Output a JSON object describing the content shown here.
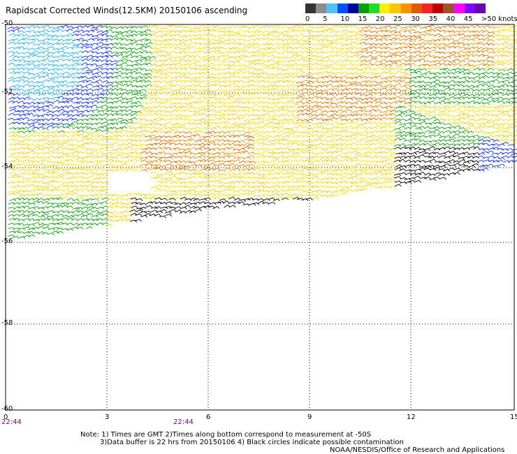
{
  "title": "Rapidscat Corrected Winds(12.5KM) 20150106 ascending",
  "legend": {
    "unit": ">50 knots",
    "labels": [
      "0",
      "5",
      "10",
      "15",
      "20",
      "25",
      "30",
      "35",
      "40",
      "45"
    ],
    "colors": [
      "#333333",
      "#8c8c8c",
      "#4fc3f7",
      "#0050ff",
      "#0000a0",
      "#00a000",
      "#22dd22",
      "#ffee00",
      "#ffc400",
      "#ff9000",
      "#e05a00",
      "#ff2020",
      "#c00000",
      "#a0522d",
      "#ff00ff",
      "#8000ff",
      "#6a00b0"
    ]
  },
  "axes": {
    "x_ticks": [
      "0",
      "3",
      "6",
      "9",
      "12",
      "15"
    ],
    "y_ticks": [
      "-50",
      "-52",
      "-54",
      "-56",
      "-58",
      "-60"
    ]
  },
  "times": [
    "22:44",
    "22:44"
  ],
  "notes": {
    "line1": "Note: 1) Times are GMT 2)Times along bottom correspond to measurement at -50S",
    "line2": "3)Data buffer is 22 hrs from 20150106 4) Black circles indicate possible contamination",
    "line3": "NOAA/NESDIS/Office of Research and Applications"
  },
  "wind_colors": {
    "black": "#000000",
    "cyan": "#29b6f6",
    "blue": "#1230ff",
    "green": "#12a012",
    "lightgreen": "#2ecc2e",
    "yellow": "#ffe600",
    "gold": "#ffcc00",
    "orange": "#f09000",
    "darkorange": "#d86a00",
    "magenta": "#d000d0"
  }
}
